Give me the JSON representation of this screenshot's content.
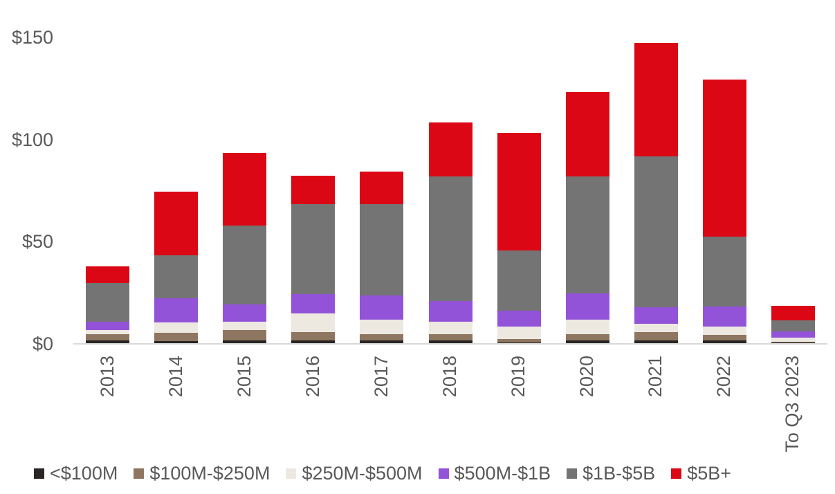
{
  "chart_data": {
    "type": "bar",
    "stacked": true,
    "title": "",
    "xlabel": "",
    "ylabel": "",
    "unit": "$B",
    "categories": [
      "2013",
      "2014",
      "2015",
      "2016",
      "2017",
      "2018",
      "2019",
      "2020",
      "2021",
      "2022",
      "To Q3 2023"
    ],
    "series": [
      {
        "name": "<$100M",
        "color": "#292524",
        "values": [
          1.5,
          1,
          1.5,
          1.5,
          1.5,
          1.5,
          0.5,
          1.5,
          1.5,
          1.5,
          0.3
        ]
      },
      {
        "name": "$100M-$250M",
        "color": "#8E7661",
        "values": [
          3,
          4,
          5,
          4,
          3,
          3,
          1.5,
          3,
          4,
          2.5,
          0.5
        ]
      },
      {
        "name": "$250M-$500M",
        "color": "#EDE9E1",
        "values": [
          2,
          5,
          4,
          9,
          7,
          6,
          6,
          7,
          4,
          4,
          2
        ]
      },
      {
        "name": "$500M-$1B",
        "color": "#9353D9",
        "values": [
          4,
          12,
          8.5,
          9.5,
          12,
          10,
          8,
          13,
          8,
          10,
          3
        ]
      },
      {
        "name": "$1B-$5B",
        "color": "#747474",
        "values": [
          19,
          21,
          38.5,
          44,
          44.5,
          61,
          29.5,
          57,
          74,
          34,
          5.5
        ]
      },
      {
        "name": "$5B+",
        "color": "#DC0714",
        "values": [
          8,
          31,
          35.5,
          14,
          16,
          26.5,
          57.5,
          41.5,
          55.5,
          77,
          7
        ]
      }
    ],
    "totals": [
      37.5,
      74,
      93,
      82,
      84,
      108,
      103,
      123,
      147,
      129,
      18.3
    ],
    "y_ticks": [
      "$0",
      "$50",
      "$100",
      "$150"
    ],
    "y_tick_values": [
      0,
      50,
      100,
      150
    ],
    "ylim": [
      0,
      150
    ],
    "grid": false,
    "legend_position": "bottom",
    "axis_text_color": "#595959",
    "baseline_color": "#D9D9D9"
  }
}
